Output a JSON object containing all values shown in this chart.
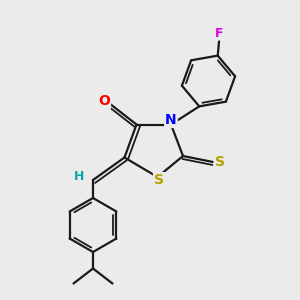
{
  "background_color": "#ebebeb",
  "bond_color": "#1a1a1a",
  "atom_colors": {
    "O": "#ff0000",
    "N": "#0000ff",
    "S": "#b8a000",
    "F": "#e000e0",
    "H": "#00aaaa",
    "C": "#1a1a1a"
  },
  "ring_lw": 1.6,
  "inner_lw": 1.3,
  "figsize": [
    3.0,
    3.0
  ],
  "dpi": 100
}
